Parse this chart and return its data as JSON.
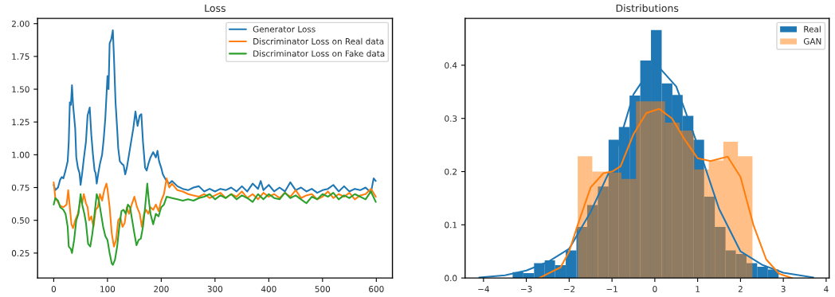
{
  "chart_data": [
    {
      "type": "line",
      "title": "Loss",
      "legend": "top right",
      "grid": false,
      "xlim": [
        -30,
        630
      ],
      "ylim": [
        0.06,
        2.04
      ],
      "xticks": [
        0,
        100,
        200,
        300,
        400,
        500,
        600
      ],
      "yticks": [
        {
          "value": 0.25,
          "label": "0.25"
        },
        {
          "value": 0.5,
          "label": "0.50"
        },
        {
          "value": 0.75,
          "label": "0.75"
        },
        {
          "value": 1.0,
          "label": "1.00"
        },
        {
          "value": 1.25,
          "label": "1.25"
        },
        {
          "value": 1.5,
          "label": "1.50"
        },
        {
          "value": 1.75,
          "label": "1.75"
        },
        {
          "value": 2.0,
          "label": "2.00"
        }
      ],
      "series": [
        {
          "name": "Generator Loss",
          "color": "#1f77b4",
          "x": [
            0,
            3,
            8,
            12,
            15,
            18,
            22,
            26,
            28,
            30,
            32,
            34,
            36,
            40,
            42,
            45,
            48,
            50,
            53,
            56,
            60,
            63,
            67,
            70,
            73,
            76,
            78,
            80,
            83,
            86,
            90,
            93,
            96,
            100,
            102,
            104,
            107,
            110,
            112,
            115,
            118,
            120,
            123,
            127,
            130,
            133,
            136,
            140,
            144,
            148,
            152,
            156,
            160,
            163,
            166,
            170,
            173,
            176,
            180,
            185,
            190,
            193,
            196,
            200,
            203,
            207,
            210,
            215,
            220,
            230,
            240,
            250,
            260,
            270,
            280,
            290,
            300,
            310,
            320,
            330,
            340,
            350,
            360,
            370,
            380,
            385,
            390,
            400,
            410,
            420,
            430,
            440,
            450,
            460,
            470,
            480,
            490,
            500,
            510,
            520,
            530,
            540,
            550,
            560,
            570,
            580,
            590,
            595,
            599
          ],
          "values": [
            0.77,
            0.73,
            0.75,
            0.81,
            0.83,
            0.82,
            0.88,
            0.95,
            1.1,
            1.4,
            1.38,
            1.53,
            1.38,
            1.2,
            0.98,
            0.9,
            0.86,
            0.77,
            0.86,
            0.97,
            1.1,
            1.3,
            1.36,
            1.15,
            1.0,
            0.88,
            0.86,
            0.78,
            0.86,
            0.93,
            1.0,
            1.12,
            1.28,
            1.6,
            1.5,
            1.85,
            1.88,
            1.95,
            1.75,
            1.4,
            1.2,
            1.05,
            0.95,
            0.93,
            0.92,
            0.85,
            0.9,
            1.0,
            1.1,
            1.2,
            1.33,
            1.22,
            1.3,
            1.31,
            1.1,
            0.9,
            0.88,
            0.93,
            0.98,
            1.02,
            0.98,
            1.03,
            0.95,
            0.9,
            0.85,
            0.82,
            0.8,
            0.78,
            0.8,
            0.76,
            0.74,
            0.73,
            0.75,
            0.76,
            0.72,
            0.74,
            0.72,
            0.74,
            0.73,
            0.75,
            0.72,
            0.76,
            0.72,
            0.78,
            0.74,
            0.8,
            0.73,
            0.77,
            0.72,
            0.75,
            0.72,
            0.79,
            0.73,
            0.75,
            0.72,
            0.74,
            0.71,
            0.73,
            0.74,
            0.77,
            0.72,
            0.76,
            0.72,
            0.74,
            0.73,
            0.75,
            0.71,
            0.82,
            0.8
          ]
        },
        {
          "name": "Discriminator Loss on Real data",
          "color": "#ff7f0e",
          "x": [
            0,
            3,
            8,
            12,
            18,
            24,
            27,
            30,
            33,
            36,
            40,
            45,
            50,
            53,
            56,
            60,
            63,
            66,
            70,
            74,
            78,
            82,
            86,
            90,
            94,
            98,
            100,
            104,
            108,
            110,
            112,
            116,
            120,
            124,
            128,
            132,
            136,
            140,
            145,
            150,
            155,
            160,
            164,
            168,
            172,
            176,
            180,
            185,
            190,
            195,
            200,
            205,
            210,
            215,
            220,
            230,
            240,
            250,
            260,
            270,
            280,
            290,
            300,
            310,
            320,
            330,
            340,
            350,
            360,
            370,
            380,
            390,
            400,
            410,
            420,
            430,
            440,
            450,
            460,
            470,
            480,
            490,
            500,
            510,
            520,
            530,
            540,
            550,
            560,
            570,
            580,
            590,
            599
          ],
          "values": [
            0.79,
            0.67,
            0.64,
            0.61,
            0.6,
            0.62,
            0.73,
            0.6,
            0.47,
            0.44,
            0.5,
            0.55,
            0.66,
            0.63,
            0.7,
            0.63,
            0.6,
            0.5,
            0.53,
            0.45,
            0.58,
            0.6,
            0.7,
            0.65,
            0.73,
            0.78,
            0.74,
            0.6,
            0.4,
            0.35,
            0.3,
            0.35,
            0.5,
            0.52,
            0.45,
            0.48,
            0.6,
            0.55,
            0.62,
            0.68,
            0.6,
            0.55,
            0.45,
            0.55,
            0.58,
            0.55,
            0.6,
            0.58,
            0.62,
            0.57,
            0.65,
            0.7,
            0.82,
            0.75,
            0.78,
            0.73,
            0.72,
            0.7,
            0.69,
            0.68,
            0.7,
            0.67,
            0.69,
            0.71,
            0.67,
            0.7,
            0.68,
            0.72,
            0.67,
            0.7,
            0.66,
            0.71,
            0.68,
            0.7,
            0.67,
            0.71,
            0.68,
            0.73,
            0.67,
            0.69,
            0.7,
            0.66,
            0.68,
            0.72,
            0.67,
            0.7,
            0.68,
            0.71,
            0.66,
            0.69,
            0.7,
            0.74,
            0.68
          ]
        },
        {
          "name": "Discriminator Loss on Fake data",
          "color": "#2ca02c",
          "x": [
            0,
            3,
            8,
            12,
            18,
            22,
            26,
            28,
            32,
            34,
            38,
            42,
            46,
            50,
            53,
            57,
            60,
            64,
            68,
            72,
            76,
            80,
            84,
            88,
            92,
            96,
            100,
            104,
            108,
            110,
            114,
            118,
            122,
            126,
            130,
            134,
            138,
            142,
            146,
            150,
            154,
            158,
            162,
            166,
            170,
            174,
            177,
            180,
            185,
            190,
            195,
            200,
            205,
            210,
            220,
            230,
            240,
            250,
            260,
            270,
            280,
            290,
            300,
            310,
            320,
            330,
            340,
            350,
            360,
            370,
            380,
            390,
            400,
            410,
            420,
            430,
            440,
            450,
            460,
            470,
            480,
            490,
            500,
            510,
            520,
            530,
            540,
            550,
            560,
            570,
            580,
            590,
            599
          ],
          "values": [
            0.62,
            0.67,
            0.65,
            0.6,
            0.58,
            0.55,
            0.45,
            0.3,
            0.28,
            0.25,
            0.35,
            0.5,
            0.55,
            0.7,
            0.62,
            0.55,
            0.48,
            0.32,
            0.3,
            0.4,
            0.55,
            0.7,
            0.65,
            0.55,
            0.45,
            0.38,
            0.35,
            0.25,
            0.17,
            0.16,
            0.2,
            0.3,
            0.45,
            0.57,
            0.58,
            0.55,
            0.62,
            0.6,
            0.5,
            0.4,
            0.31,
            0.35,
            0.36,
            0.45,
            0.6,
            0.78,
            0.65,
            0.55,
            0.47,
            0.55,
            0.53,
            0.6,
            0.62,
            0.68,
            0.67,
            0.66,
            0.65,
            0.66,
            0.65,
            0.67,
            0.68,
            0.7,
            0.66,
            0.69,
            0.67,
            0.7,
            0.66,
            0.69,
            0.67,
            0.64,
            0.7,
            0.66,
            0.7,
            0.67,
            0.66,
            0.71,
            0.67,
            0.69,
            0.66,
            0.63,
            0.68,
            0.66,
            0.7,
            0.68,
            0.71,
            0.66,
            0.69,
            0.67,
            0.7,
            0.68,
            0.66,
            0.72,
            0.64
          ]
        }
      ]
    },
    {
      "type": "histogram",
      "title": "Distributions",
      "legend": "top right",
      "grid": false,
      "xlim": [
        -4.43,
        4.07
      ],
      "ylim": [
        0,
        0.488
      ],
      "xticks": [
        {
          "value": -4,
          "label": "−4"
        },
        {
          "value": -3,
          "label": "−3"
        },
        {
          "value": -2,
          "label": "−2"
        },
        {
          "value": -1,
          "label": "−1"
        },
        0,
        1,
        2,
        3,
        4
      ],
      "yticks": [
        {
          "value": 0,
          "label": "0.0"
        },
        {
          "value": 0.1,
          "label": "0.1"
        },
        {
          "value": 0.2,
          "label": "0.2"
        },
        {
          "value": 0.3,
          "label": "0.3"
        },
        {
          "value": 0.4,
          "label": "0.4"
        }
      ],
      "series": [
        {
          "name": "Real",
          "color": "#1f77b4",
          "bins": [
            -3.32,
            -3.07,
            -2.82,
            -2.57,
            -2.33,
            -2.08,
            -1.83,
            -1.58,
            -1.33,
            -1.08,
            -0.84,
            -0.59,
            -0.34,
            -0.09,
            0.16,
            0.41,
            0.65,
            0.9,
            1.15,
            1.4,
            1.65,
            1.89,
            2.14,
            2.39,
            2.64,
            2.89
          ],
          "values": [
            0.011,
            0.009,
            0.028,
            0.033,
            0.024,
            0.052,
            0.096,
            0.137,
            0.172,
            0.26,
            0.284,
            0.343,
            0.409,
            0.466,
            0.366,
            0.344,
            0.305,
            0.26,
            0.153,
            0.096,
            0.052,
            0.045,
            0.028,
            0.021,
            0.016
          ]
        },
        {
          "name": "GAN",
          "color": "#ffbf86",
          "bins": [
            -1.8,
            -1.46,
            -1.12,
            -0.78,
            -0.44,
            -0.1,
            0.24,
            0.58,
            0.92,
            1.26,
            1.6,
            1.94,
            2.28
          ],
          "values": [
            0.229,
            0.2,
            0.198,
            0.186,
            0.332,
            0.332,
            0.292,
            0.277,
            0.204,
            0.221,
            0.256,
            0.229
          ]
        },
        {
          "type": "line",
          "color": "#1f77b4",
          "x": [
            -4.1,
            -3.5,
            -3,
            -2.5,
            -2,
            -1.5,
            -1,
            -0.5,
            0,
            0.5,
            1,
            1.5,
            2,
            2.5,
            3,
            3.7
          ],
          "values": [
            0.001,
            0.005,
            0.014,
            0.03,
            0.055,
            0.124,
            0.211,
            0.345,
            0.405,
            0.36,
            0.25,
            0.13,
            0.05,
            0.025,
            0.01,
            0.001
          ]
        },
        {
          "type": "line",
          "color": "#ff7f0e",
          "x": [
            -2.7,
            -2.2,
            -2,
            -1.8,
            -1.5,
            -1.2,
            -1,
            -0.8,
            -0.5,
            -0.2,
            0.1,
            0.4,
            0.7,
            1,
            1.3,
            1.7,
            2,
            2.3,
            2.6,
            2.9,
            3.2
          ],
          "values": [
            0.0,
            0.02,
            0.05,
            0.1,
            0.17,
            0.197,
            0.2,
            0.21,
            0.27,
            0.31,
            0.318,
            0.3,
            0.26,
            0.225,
            0.22,
            0.228,
            0.19,
            0.1,
            0.035,
            0.008,
            0.0
          ]
        }
      ]
    }
  ]
}
